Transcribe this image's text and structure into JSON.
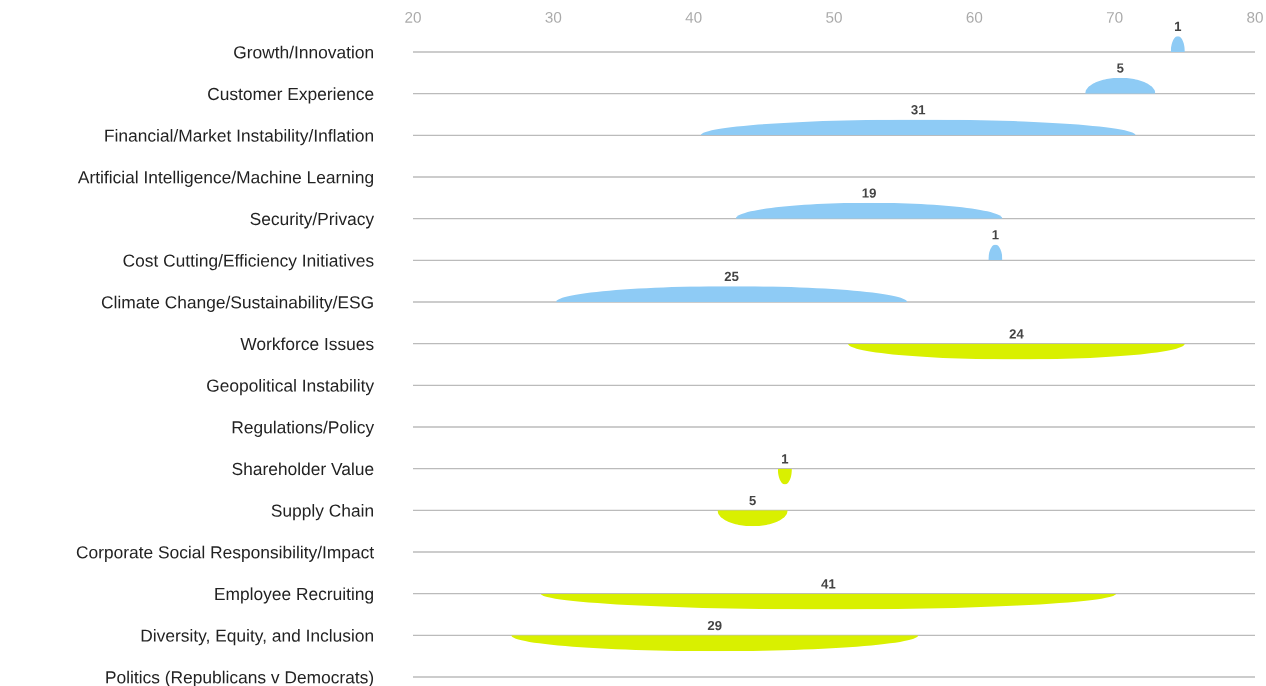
{
  "chart_data": {
    "type": "bar",
    "orientation": "horizontal",
    "categories": [
      "Growth/Innovation",
      "Customer Experience",
      "Financial/Market Instability/Inflation",
      "Artificial Intelligence/Machine Learning",
      "Security/Privacy",
      "Cost Cutting/Efficiency Initiatives",
      "Climate Change/Sustainability/ESG",
      "Workforce Issues",
      "Geopolitical Instability",
      "Regulations/Policy",
      "Shareholder Value",
      "Supply Chain",
      "Corporate Social Responsibility/Impact",
      "Employee Recruiting",
      "Diversity, Equity, and Inclusion",
      "Politics (Republicans v Democrats)"
    ],
    "base": [
      74.0,
      67.9,
      40.5,
      null,
      43.0,
      61.0,
      30.2,
      51.0,
      null,
      null,
      46.0,
      41.7,
      null,
      29.1,
      27.0,
      null
    ],
    "values": [
      1,
      5,
      31,
      null,
      19,
      1,
      25,
      24,
      null,
      null,
      1,
      5,
      null,
      41,
      29,
      null
    ],
    "colors": [
      "#8ecbf5",
      "#8ecbf5",
      "#8ecbf5",
      null,
      "#8ecbf5",
      "#8ecbf5",
      "#8ecbf5",
      "#d9f000",
      null,
      null,
      "#d9f000",
      "#d9f000",
      null,
      "#d9f000",
      "#d9f000",
      null
    ],
    "data_labels": true,
    "xlim": [
      20,
      80
    ],
    "xticks": [
      20,
      30,
      40,
      50,
      60,
      70,
      80
    ],
    "grid": "y"
  }
}
